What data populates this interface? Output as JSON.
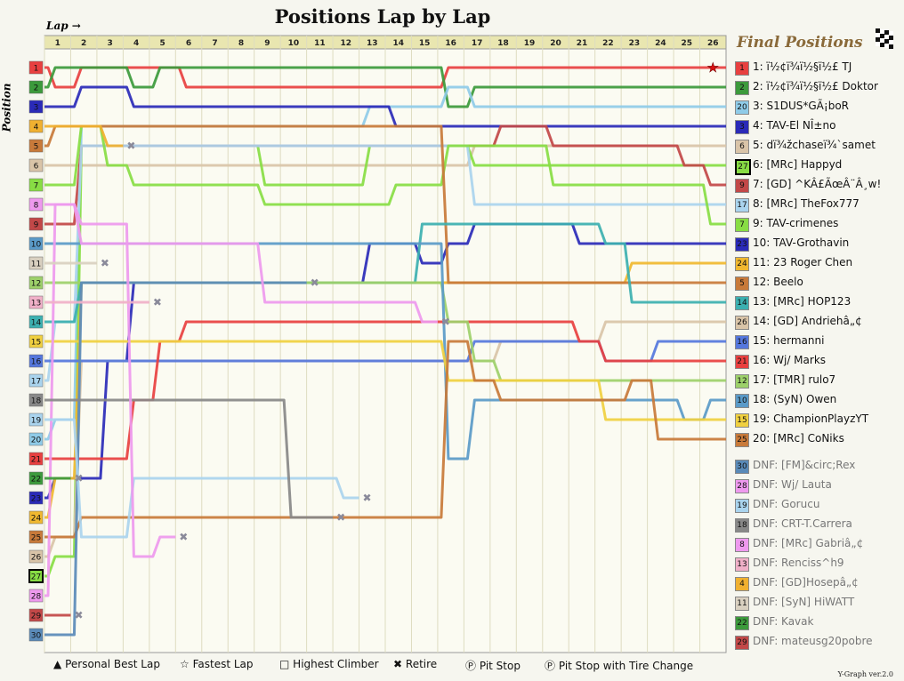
{
  "title": "Positions Lap by Lap",
  "final_title": "Final Positions",
  "lap_label": "Lap",
  "position_label": "Position",
  "version": "Y-Graph ver.2.0",
  "key": [
    "Personal Best Lap",
    "Fastest Lap",
    "Highest Climber",
    "Retire",
    "Pit Stop",
    "Pit Stop with Tire Change"
  ],
  "chart_data": {
    "type": "line",
    "title": "Positions Lap by Lap",
    "xlabel": "Lap",
    "ylabel": "Position",
    "laps": [
      1,
      2,
      3,
      4,
      5,
      6,
      7,
      8,
      9,
      10,
      11,
      12,
      13,
      14,
      15,
      16,
      17,
      18,
      19,
      20,
      21,
      22,
      23,
      24,
      25,
      26
    ],
    "grid_positions": [
      1,
      2,
      3,
      4,
      5,
      6,
      7,
      8,
      9,
      10,
      11,
      12,
      13,
      14,
      15,
      16,
      17,
      18,
      19,
      20,
      21,
      22,
      23,
      24,
      25,
      26,
      27,
      28,
      29,
      30
    ],
    "ylim": [
      30,
      1
    ],
    "series": [
      {
        "name": "1: ï½¢ï¾ï½§ï½£ TJ",
        "color": "#e84040",
        "start": 1,
        "final": 1,
        "positions": [
          2,
          1,
          1,
          1,
          1,
          2,
          2,
          2,
          2,
          2,
          2,
          2,
          2,
          2,
          2,
          1,
          1,
          1,
          1,
          1,
          1,
          1,
          1,
          1,
          1,
          1
        ]
      },
      {
        "name": "2: ï½¢ï¾ï½§ï½£ Doktor",
        "color": "#3c9a3c",
        "start": 2,
        "final": 2,
        "positions": [
          1,
          1,
          1,
          2,
          1,
          1,
          1,
          1,
          1,
          1,
          1,
          1,
          1,
          1,
          1,
          3,
          2,
          2,
          2,
          2,
          2,
          2,
          2,
          2,
          2,
          2
        ]
      },
      {
        "name": "3: S1DUS*GÃ¡boR",
        "color": "#8fcbe8",
        "start": 20,
        "final": 3,
        "positions": [
          19,
          4,
          4,
          4,
          4,
          4,
          4,
          4,
          4,
          4,
          4,
          4,
          3,
          3,
          3,
          2,
          3,
          3,
          3,
          3,
          3,
          3,
          3,
          3,
          3,
          3
        ]
      },
      {
        "name": "4: TAV-El NÎ±no",
        "color": "#2a2ab8",
        "start": 3,
        "final": 4,
        "positions": [
          3,
          2,
          2,
          3,
          3,
          3,
          3,
          3,
          3,
          3,
          3,
          3,
          3,
          4,
          4,
          4,
          4,
          4,
          4,
          4,
          4,
          4,
          4,
          4,
          4,
          4
        ]
      },
      {
        "name": "5: dï¾žchaseï¾`samet",
        "color": "#d9c4a8",
        "start": 6,
        "final": 5,
        "positions": [
          6,
          6,
          6,
          6,
          6,
          6,
          6,
          6,
          6,
          6,
          6,
          6,
          6,
          6,
          6,
          6,
          5,
          5,
          5,
          5,
          5,
          5,
          5,
          5,
          5,
          5
        ]
      },
      {
        "name": "6: [MRc] Happyd",
        "color": "#88dd44",
        "start": 27,
        "final": 6,
        "positions": [
          26,
          5,
          5,
          5,
          5,
          5,
          5,
          5,
          7,
          7,
          7,
          7,
          5,
          5,
          5,
          5,
          6,
          6,
          6,
          6,
          6,
          6,
          6,
          6,
          6,
          6
        ]
      },
      {
        "name": "7: [GD] ^KÂ£ÃœÂ¨Â¸w!",
        "color": "#c24848",
        "start": 9,
        "final": 7,
        "positions": [
          9,
          5,
          5,
          5,
          5,
          5,
          5,
          5,
          5,
          5,
          5,
          5,
          5,
          5,
          5,
          5,
          5,
          4,
          4,
          5,
          5,
          5,
          5,
          5,
          6,
          7
        ]
      },
      {
        "name": "8: [MRc] TheFox777",
        "color": "#aad4ee",
        "start": 17,
        "final": 8,
        "positions": [
          14,
          5,
          5,
          5,
          5,
          5,
          5,
          5,
          5,
          5,
          5,
          5,
          5,
          5,
          5,
          5,
          8,
          8,
          8,
          8,
          8,
          8,
          8,
          8,
          8,
          8
        ]
      },
      {
        "name": "9: TAV-crimenes",
        "color": "#88dd44",
        "start": 7,
        "final": 9,
        "positions": [
          7,
          4,
          6,
          7,
          7,
          7,
          7,
          7,
          8,
          8,
          8,
          8,
          8,
          7,
          7,
          5,
          5,
          5,
          5,
          7,
          7,
          7,
          7,
          7,
          7,
          9
        ]
      },
      {
        "name": "10: TAV-Grothavin",
        "color": "#2a2ab8",
        "start": 23,
        "final": 10,
        "positions": [
          22,
          22,
          16,
          12,
          12,
          12,
          12,
          12,
          12,
          12,
          12,
          12,
          10,
          10,
          11,
          10,
          9,
          9,
          9,
          9,
          10,
          10,
          10,
          10,
          10,
          10
        ]
      },
      {
        "name": "11: 23 Roger Chen",
        "color": "#f0b830",
        "start": 24,
        "final": 11,
        "positions": [
          22,
          12,
          12,
          12,
          12,
          12,
          12,
          12,
          12,
          12,
          12,
          12,
          12,
          12,
          12,
          12,
          12,
          12,
          12,
          12,
          12,
          12,
          11,
          11,
          11,
          11
        ]
      },
      {
        "name": "12: Beelo",
        "color": "#c87a3a",
        "start": 5,
        "final": 12,
        "positions": [
          4,
          4,
          4,
          4,
          4,
          4,
          4,
          4,
          4,
          4,
          4,
          4,
          4,
          4,
          4,
          12,
          12,
          12,
          12,
          12,
          12,
          12,
          12,
          12,
          12,
          12
        ]
      },
      {
        "name": "13: [MRc] HOP123",
        "color": "#3cb0b0",
        "start": 14,
        "final": 13,
        "positions": [
          14,
          12,
          12,
          12,
          12,
          12,
          12,
          12,
          12,
          12,
          12,
          12,
          12,
          12,
          9,
          9,
          9,
          9,
          9,
          9,
          9,
          10,
          13,
          13,
          13,
          13
        ]
      },
      {
        "name": "14: [GD] Andriehâ„¢",
        "color": "#d9c4a8",
        "start": 26,
        "final": 14,
        "positions": [
          25,
          16,
          16,
          16,
          16,
          16,
          16,
          16,
          16,
          16,
          16,
          16,
          16,
          16,
          16,
          16,
          16,
          15,
          15,
          15,
          15,
          14,
          14,
          14,
          14,
          14
        ]
      },
      {
        "name": "15: hermanni",
        "color": "#5577dd",
        "start": 16,
        "final": 15,
        "positions": [
          16,
          16,
          16,
          16,
          16,
          16,
          16,
          16,
          16,
          16,
          16,
          16,
          16,
          16,
          16,
          16,
          15,
          15,
          15,
          15,
          15,
          16,
          16,
          15,
          15,
          15
        ]
      },
      {
        "name": "16: Wj/ Marks",
        "color": "#e84040",
        "start": 21,
        "final": 16,
        "positions": [
          21,
          21,
          21,
          18,
          15,
          14,
          14,
          14,
          14,
          14,
          14,
          14,
          14,
          14,
          14,
          14,
          14,
          14,
          14,
          14,
          15,
          16,
          16,
          16,
          16,
          16
        ]
      },
      {
        "name": "17: [TMR] rulo7",
        "color": "#9dd06a",
        "start": 12,
        "final": 17,
        "positions": [
          12,
          12,
          12,
          12,
          12,
          12,
          12,
          12,
          12,
          12,
          12,
          12,
          12,
          12,
          12,
          14,
          16,
          17,
          17,
          17,
          17,
          17,
          17,
          17,
          17,
          17
        ]
      },
      {
        "name": "18: (SyN) Owen",
        "color": "#5a9ac8",
        "start": 10,
        "final": 18,
        "positions": [
          10,
          10,
          10,
          10,
          10,
          10,
          10,
          10,
          10,
          10,
          10,
          10,
          10,
          10,
          10,
          21,
          18,
          18,
          18,
          18,
          18,
          18,
          18,
          18,
          19,
          18
        ]
      },
      {
        "name": "19: ChampionPlayzYT",
        "color": "#f0d040",
        "start": 15,
        "final": 19,
        "positions": [
          15,
          15,
          15,
          15,
          15,
          15,
          15,
          15,
          15,
          15,
          15,
          15,
          15,
          15,
          15,
          17,
          17,
          17,
          17,
          17,
          17,
          19,
          19,
          19,
          19,
          19
        ]
      },
      {
        "name": "20: [MRc] CoNiks",
        "color": "#c87a3a",
        "start": 25,
        "final": 20,
        "positions": [
          25,
          24,
          24,
          24,
          24,
          24,
          24,
          24,
          24,
          24,
          24,
          24,
          24,
          24,
          24,
          15,
          17,
          18,
          18,
          18,
          18,
          18,
          17,
          20,
          20,
          20
        ]
      },
      {
        "name": "DNF: [FM]&circ;Rex",
        "color": "#5a8ab8",
        "start": 30,
        "final": null,
        "positions": [
          30,
          12,
          12,
          12,
          12,
          12,
          12,
          12,
          12,
          12
        ]
      },
      {
        "name": "DNF: Wj/ Lauta",
        "color": "#ee99ee",
        "start": 28,
        "final": null,
        "positions": [
          8,
          10,
          10,
          10,
          10,
          10,
          10,
          10,
          13,
          13,
          13,
          13,
          13,
          13,
          14
        ]
      },
      {
        "name": "DNF: Gorucu",
        "color": "#aad4ee",
        "start": 19,
        "final": null,
        "positions": [
          19,
          25,
          25,
          22,
          22,
          22,
          22,
          22,
          22,
          22,
          22,
          23
        ]
      },
      {
        "name": "DNF: CRT-T.Carrera",
        "color": "#888888",
        "start": 18,
        "final": null,
        "positions": [
          18,
          18,
          18,
          18,
          18,
          18,
          18,
          18,
          18,
          24,
          24
        ]
      },
      {
        "name": "DNF: [MRc] Gabriâ„¢",
        "color": "#ee99ee",
        "start": 8,
        "final": null,
        "positions": [
          8,
          9,
          9,
          26,
          25
        ]
      },
      {
        "name": "DNF: Renciss^h9",
        "color": "#f0b0c8",
        "start": 13,
        "final": null,
        "positions": [
          13,
          13,
          13,
          13
        ]
      },
      {
        "name": "DNF: [GD]Hosepâ„¢",
        "color": "#f0b030",
        "start": 4,
        "final": null,
        "positions": [
          4,
          4,
          5
        ]
      },
      {
        "name": "DNF: [SyN] HiWATT",
        "color": "#d9d0c0",
        "start": 11,
        "final": null,
        "positions": [
          11,
          11
        ]
      },
      {
        "name": "DNF: Kavak",
        "color": "#3c9a3c",
        "start": 22,
        "final": null,
        "positions": [
          22
        ]
      },
      {
        "name": "DNF: mateusg20pobre",
        "color": "#c24848",
        "start": 29,
        "final": null,
        "positions": [
          29
        ]
      }
    ],
    "grid_badges": [
      {
        "pos": 1,
        "color": "#e84040"
      },
      {
        "pos": 2,
        "color": "#3c9a3c"
      },
      {
        "pos": 3,
        "color": "#2a2ab8"
      },
      {
        "pos": 4,
        "color": "#f0b030"
      },
      {
        "pos": 5,
        "color": "#c87a3a"
      },
      {
        "pos": 6,
        "color": "#d9c4a8"
      },
      {
        "pos": 7,
        "color": "#88dd44"
      },
      {
        "pos": 8,
        "color": "#ee99ee"
      },
      {
        "pos": 9,
        "color": "#c24848"
      },
      {
        "pos": 10,
        "color": "#5a9ac8"
      },
      {
        "pos": 11,
        "color": "#d9d0c0"
      },
      {
        "pos": 12,
        "color": "#9dd06a"
      },
      {
        "pos": 13,
        "color": "#f0b0c8"
      },
      {
        "pos": 14,
        "color": "#3cb0b0"
      },
      {
        "pos": 15,
        "color": "#f0d040"
      },
      {
        "pos": 16,
        "color": "#5577dd"
      },
      {
        "pos": 17,
        "color": "#aad4ee"
      },
      {
        "pos": 18,
        "color": "#888888"
      },
      {
        "pos": 19,
        "color": "#aad4ee"
      },
      {
        "pos": 20,
        "color": "#8fcbe8"
      },
      {
        "pos": 21,
        "color": "#e84040"
      },
      {
        "pos": 22,
        "color": "#3c9a3c"
      },
      {
        "pos": 23,
        "color": "#2a2ab8"
      },
      {
        "pos": 24,
        "color": "#f0b830"
      },
      {
        "pos": 25,
        "color": "#c87a3a"
      },
      {
        "pos": 26,
        "color": "#d9c4a8"
      },
      {
        "pos": 27,
        "color": "#88dd44",
        "highlight": true
      },
      {
        "pos": 28,
        "color": "#ee99ee"
      },
      {
        "pos": 29,
        "color": "#c24848"
      },
      {
        "pos": 30,
        "color": "#5a8ab8"
      }
    ]
  },
  "final_positions": [
    {
      "badge": "1",
      "color": "#e84040",
      "label": "1: ï½¢ï¾ï½§ï½£ TJ"
    },
    {
      "badge": "2",
      "color": "#3c9a3c",
      "label": "2: ï½¢ï¾ï½§ï½£ Doktor"
    },
    {
      "badge": "20",
      "color": "#8fcbe8",
      "label": "3: S1DUS*GÃ¡boR"
    },
    {
      "badge": "3",
      "color": "#2a2ab8",
      "label": "4: TAV-El NÎ±no"
    },
    {
      "badge": "6",
      "color": "#d9c4a8",
      "label": "5: dï¾žchaseï¾`samet"
    },
    {
      "badge": "27",
      "color": "#88dd44",
      "label": "6: [MRc] Happyd",
      "highlight": true
    },
    {
      "badge": "9",
      "color": "#c24848",
      "label": "7: [GD] ^KÂ£ÃœÂ¨Â¸w!"
    },
    {
      "badge": "17",
      "color": "#aad4ee",
      "label": "8: [MRc] TheFox777"
    },
    {
      "badge": "7",
      "color": "#88dd44",
      "label": "9: TAV-crimenes"
    },
    {
      "badge": "23",
      "color": "#2a2ab8",
      "label": "10: TAV-Grothavin"
    },
    {
      "badge": "24",
      "color": "#f0b830",
      "label": "11: 23 Roger Chen"
    },
    {
      "badge": "5",
      "color": "#c87a3a",
      "label": "12: Beelo"
    },
    {
      "badge": "14",
      "color": "#3cb0b0",
      "label": "13: [MRc] HOP123"
    },
    {
      "badge": "26",
      "color": "#d9c4a8",
      "label": "14: [GD] Andriehâ„¢"
    },
    {
      "badge": "16",
      "color": "#5577dd",
      "label": "15: hermanni"
    },
    {
      "badge": "21",
      "color": "#e84040",
      "label": "16: Wj/ Marks"
    },
    {
      "badge": "12",
      "color": "#9dd06a",
      "label": "17: [TMR] rulo7"
    },
    {
      "badge": "10",
      "color": "#5a9ac8",
      "label": "18: (SyN) Owen"
    },
    {
      "badge": "15",
      "color": "#f0d040",
      "label": "19: ChampionPlayzYT"
    },
    {
      "badge": "25",
      "color": "#c87a3a",
      "label": "20: [MRc] CoNiks"
    }
  ],
  "dnf": [
    {
      "badge": "30",
      "color": "#5a8ab8",
      "label": "DNF: [FM]&circ;Rex"
    },
    {
      "badge": "28",
      "color": "#ee99ee",
      "label": "DNF: Wj/ Lauta"
    },
    {
      "badge": "19",
      "color": "#aad4ee",
      "label": "DNF: Gorucu"
    },
    {
      "badge": "18",
      "color": "#888888",
      "label": "DNF: CRT-T.Carrera"
    },
    {
      "badge": "8",
      "color": "#ee99ee",
      "label": "DNF: [MRc] Gabriâ„¢"
    },
    {
      "badge": "13",
      "color": "#f0b0c8",
      "label": "DNF: Renciss^h9"
    },
    {
      "badge": "4",
      "color": "#f0b030",
      "label": "DNF: [GD]Hosepâ„¢"
    },
    {
      "badge": "11",
      "color": "#d9d0c0",
      "label": "DNF: [SyN] HiWATT"
    },
    {
      "badge": "22",
      "color": "#3c9a3c",
      "label": "DNF: Kavak"
    },
    {
      "badge": "29",
      "color": "#c24848",
      "label": "DNF: mateusg20pobre"
    }
  ]
}
